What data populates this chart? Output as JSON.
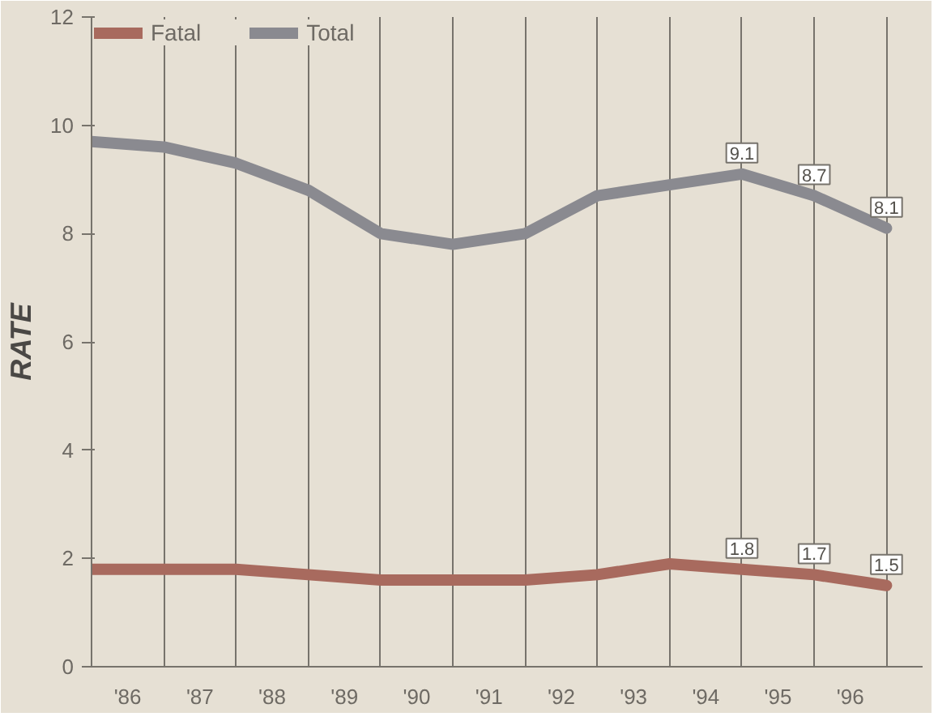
{
  "chart_data": {
    "type": "line",
    "ylabel": "RATE",
    "x": [
      1985.5,
      1986.5,
      1987.5,
      1988.5,
      1989.5,
      1990.5,
      1991.5,
      1992.5,
      1993.5,
      1994.5,
      1995.5,
      1996.5
    ],
    "series": [
      {
        "name": "Fatal",
        "color": "#a86a5e",
        "values": [
          1.8,
          1.8,
          1.8,
          1.7,
          1.6,
          1.6,
          1.6,
          1.7,
          1.9,
          1.8,
          1.7,
          1.5
        ],
        "value_labels": [
          null,
          null,
          null,
          null,
          null,
          null,
          null,
          null,
          null,
          "1.8",
          "1.7",
          "1.5"
        ]
      },
      {
        "name": "Total",
        "color": "#8a8a90",
        "values": [
          9.7,
          9.6,
          9.3,
          8.8,
          8.0,
          7.8,
          8.0,
          8.7,
          8.9,
          9.1,
          8.7,
          8.1
        ],
        "value_labels": [
          null,
          null,
          null,
          null,
          null,
          null,
          null,
          null,
          null,
          "9.1",
          "8.7",
          "8.1"
        ]
      }
    ],
    "xlim": [
      1985.5,
      1997.0
    ],
    "xticks": [
      {
        "value": 1985.5,
        "label": null
      },
      {
        "value": 1986,
        "label": "'86"
      },
      {
        "value": 1986.5,
        "label": null
      },
      {
        "value": 1987,
        "label": "'87"
      },
      {
        "value": 1987.5,
        "label": null
      },
      {
        "value": 1988,
        "label": "'88"
      },
      {
        "value": 1988.5,
        "label": null
      },
      {
        "value": 1989,
        "label": "'89"
      },
      {
        "value": 1989.5,
        "label": null
      },
      {
        "value": 1990,
        "label": "'90"
      },
      {
        "value": 1990.5,
        "label": null
      },
      {
        "value": 1991,
        "label": "'91"
      },
      {
        "value": 1991.5,
        "label": null
      },
      {
        "value": 1992,
        "label": "'92"
      },
      {
        "value": 1992.5,
        "label": null
      },
      {
        "value": 1993,
        "label": "'93"
      },
      {
        "value": 1993.5,
        "label": null
      },
      {
        "value": 1994,
        "label": "'94"
      },
      {
        "value": 1994.5,
        "label": null
      },
      {
        "value": 1995,
        "label": "'95"
      },
      {
        "value": 1995.5,
        "label": null
      },
      {
        "value": 1996,
        "label": "'96"
      },
      {
        "value": 1996.5,
        "label": null
      }
    ],
    "ylim": [
      0,
      12
    ],
    "yticks": [
      0,
      2,
      4,
      6,
      8,
      10,
      12
    ],
    "grid": "x",
    "legend": "top left",
    "marker": "none",
    "line_style": "solid"
  }
}
